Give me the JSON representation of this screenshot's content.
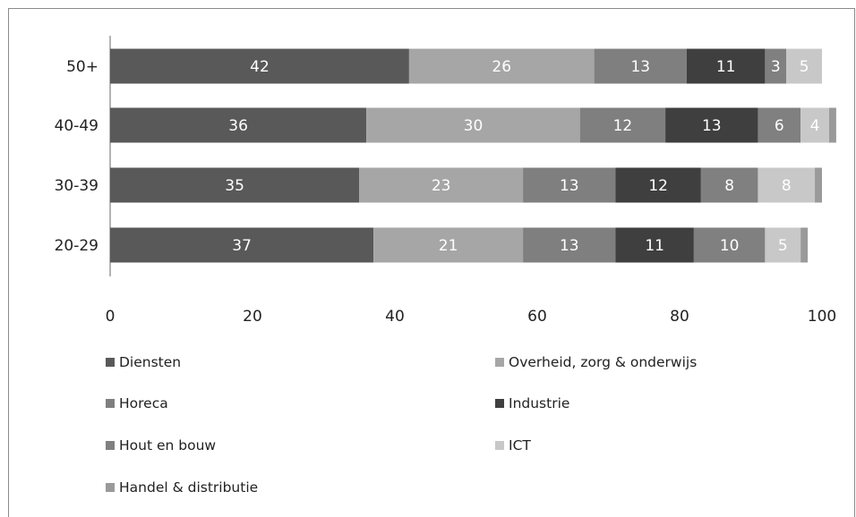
{
  "chart_data": {
    "type": "bar",
    "orientation": "horizontal",
    "stacked": true,
    "categories": [
      "50+",
      "40-49",
      "30-39",
      "20-29"
    ],
    "xlim": [
      0,
      100
    ],
    "x_ticks": [
      "0",
      "20",
      "40",
      "60",
      "80",
      "100"
    ],
    "legend_position": "bottom",
    "grid": false,
    "series": [
      {
        "name": "Diensten",
        "values": [
          42,
          36,
          35,
          37
        ],
        "labels": [
          "42",
          "36",
          "35",
          "37"
        ],
        "color": "#595959"
      },
      {
        "name": "Overheid, zorg & onderwijs",
        "values": [
          26,
          30,
          23,
          21
        ],
        "labels": [
          "26",
          "30",
          "23",
          "21"
        ],
        "color": "#a6a6a6"
      },
      {
        "name": "Horeca",
        "values": [
          13,
          12,
          13,
          13
        ],
        "labels": [
          "13",
          "12",
          "13",
          "13"
        ],
        "color": "#7f7f7f"
      },
      {
        "name": "Industrie",
        "values": [
          11,
          13,
          12,
          11
        ],
        "labels": [
          "11",
          "13",
          "12",
          "11"
        ],
        "color": "#3f3f3f"
      },
      {
        "name": "Hout en bouw",
        "values": [
          3,
          6,
          8,
          10
        ],
        "labels": [
          "3",
          "6",
          "8",
          "10"
        ],
        "color": "#808080"
      },
      {
        "name": "ICT",
        "values": [
          5,
          4,
          8,
          5
        ],
        "labels": [
          "5",
          "4",
          "8",
          "5"
        ],
        "color": "#c8c8c8"
      },
      {
        "name": "Handel & distributie",
        "values": [
          0,
          1,
          1,
          1
        ],
        "labels": [
          "",
          "",
          "",
          ""
        ],
        "color": "#9a9a9a"
      }
    ]
  }
}
